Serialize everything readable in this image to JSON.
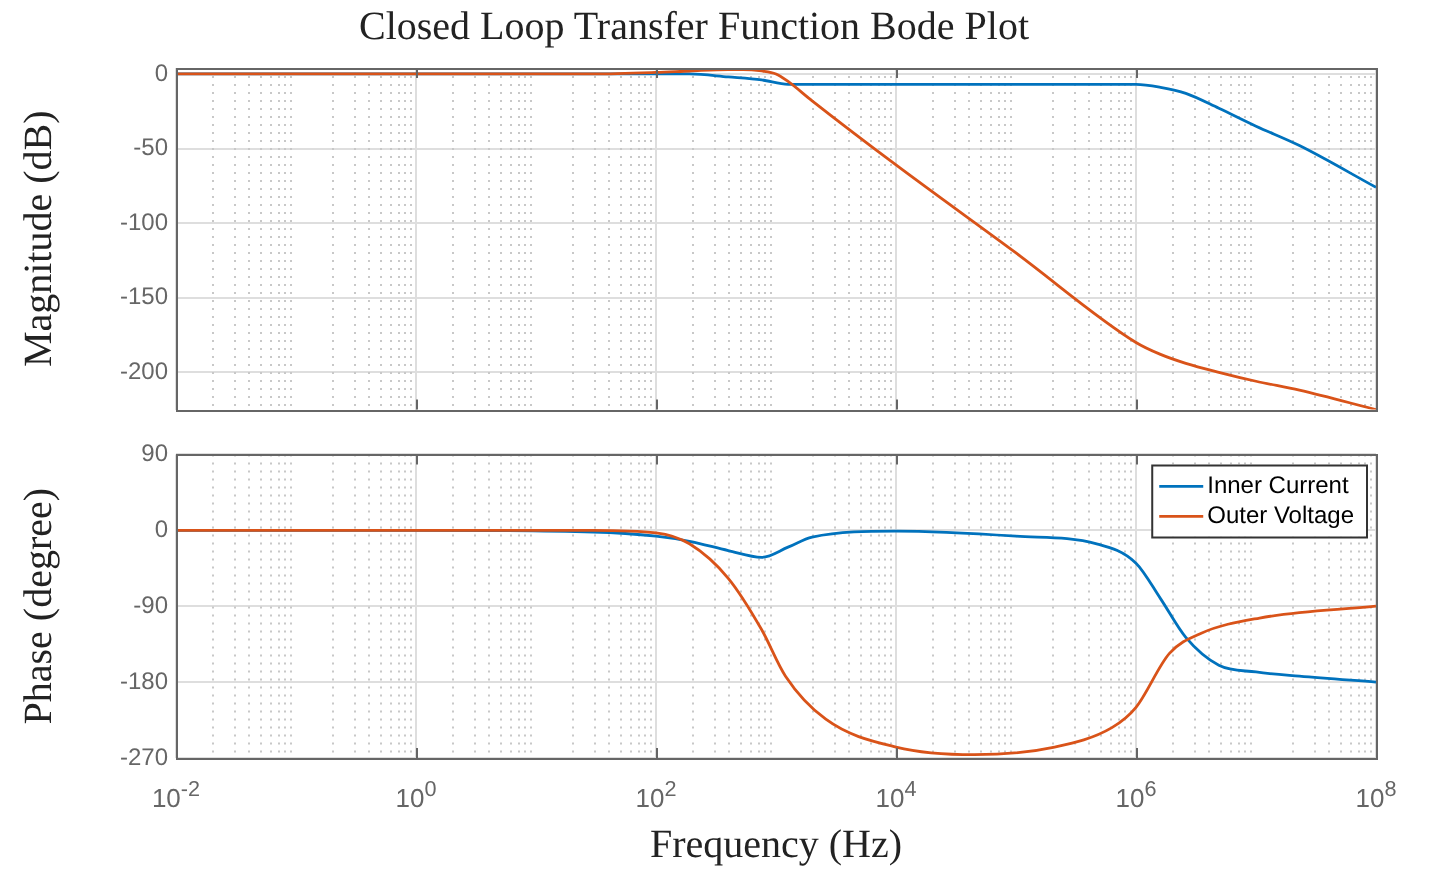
{
  "chart_data": [
    {
      "type": "line",
      "title": "Closed Loop Transfer Function Bode Plot",
      "ylabel": "Magnitude (dB)",
      "log": "x",
      "grid": true,
      "tick_labels": "y",
      "xlim": [
        0.01,
        100000000
      ],
      "xticks": [
        {
          "value": 0.01,
          "label": null
        },
        {
          "value": 1,
          "label": null
        },
        {
          "value": 100,
          "label": null
        },
        {
          "value": 10000,
          "label": null
        },
        {
          "value": 1000000,
          "label": null
        },
        {
          "value": 100000000,
          "label": null
        }
      ],
      "ylim": [
        -225,
        4
      ],
      "yticks": [
        -200,
        -150,
        -100,
        -50,
        0
      ],
      "series": [
        {
          "color": "#0072bd",
          "x": [
            0.01,
            1,
            100,
            190,
            400,
            760,
            1260,
            2000,
            10000,
            100000,
            1000000,
            1600000,
            2600000,
            4900000,
            10000000,
            23000000,
            100000000
          ],
          "values": [
            0,
            0,
            0,
            0,
            -2,
            -4,
            -7,
            -7,
            -7,
            -7,
            -7,
            -9,
            -13,
            -23,
            -35,
            -48,
            -76
          ]
        },
        {
          "color": "#d95319",
          "x": [
            0.01,
            1,
            30,
            100,
            190,
            400,
            530,
            760,
            1000,
            1260,
            2000,
            10000,
            100000,
            1000000,
            1600000,
            2600000,
            4900000,
            10000000,
            23000000,
            100000000
          ],
          "values": [
            0,
            0,
            0,
            1,
            2,
            3,
            3,
            2,
            0,
            -5,
            -18,
            -61,
            -120,
            -180,
            -188,
            -194,
            -200,
            -206,
            -212,
            -225
          ]
        }
      ]
    },
    {
      "type": "line",
      "xlabel": "Frequency (Hz)",
      "ylabel": "Phase (degree)",
      "log": "x",
      "grid": true,
      "legend": "top right",
      "xlim": [
        0.01,
        100000000
      ],
      "xticks": [
        {
          "value": 0.01,
          "label": "10$^{-2}$"
        },
        {
          "value": 1,
          "label": "10$^{0}$"
        },
        {
          "value": 100,
          "label": "10$^{2}$"
        },
        {
          "value": 10000,
          "label": "10$^{4}$"
        },
        {
          "value": 1000000,
          "label": "10$^{6}$"
        },
        {
          "value": 100000000,
          "label": "10$^{8}$"
        }
      ],
      "ylim": [
        -270,
        90
      ],
      "yticks": [
        -270,
        -180,
        -90,
        0,
        90
      ],
      "series": [
        {
          "name": "Inner Current",
          "color": "#0072bd",
          "x": [
            0.01,
            1,
            30,
            100,
            190,
            400,
            760,
            1260,
            2000,
            10000,
            100000,
            470000,
            1000000,
            1600000,
            2600000,
            4900000,
            10000000,
            23000000,
            100000000
          ],
          "values": [
            0,
            0,
            -2,
            -7,
            -13,
            -24,
            -32,
            -20,
            -8,
            -1,
            -7,
            -16,
            -39,
            -81,
            -127,
            -160,
            -168,
            -173,
            -180
          ]
        },
        {
          "name": "Outer Voltage",
          "color": "#d95319",
          "x": [
            0.01,
            1,
            30,
            100,
            190,
            400,
            760,
            1200,
            2600,
            10000,
            45000,
            210000,
            630000,
            1000000,
            1900000,
            3500000,
            10700000,
            100000000
          ],
          "values": [
            0,
            0,
            0,
            -3,
            -16,
            -57,
            -118,
            -173,
            -224,
            -257,
            -266,
            -257,
            -234,
            -210,
            -146,
            -122,
            -104,
            -90
          ]
        }
      ]
    }
  ]
}
